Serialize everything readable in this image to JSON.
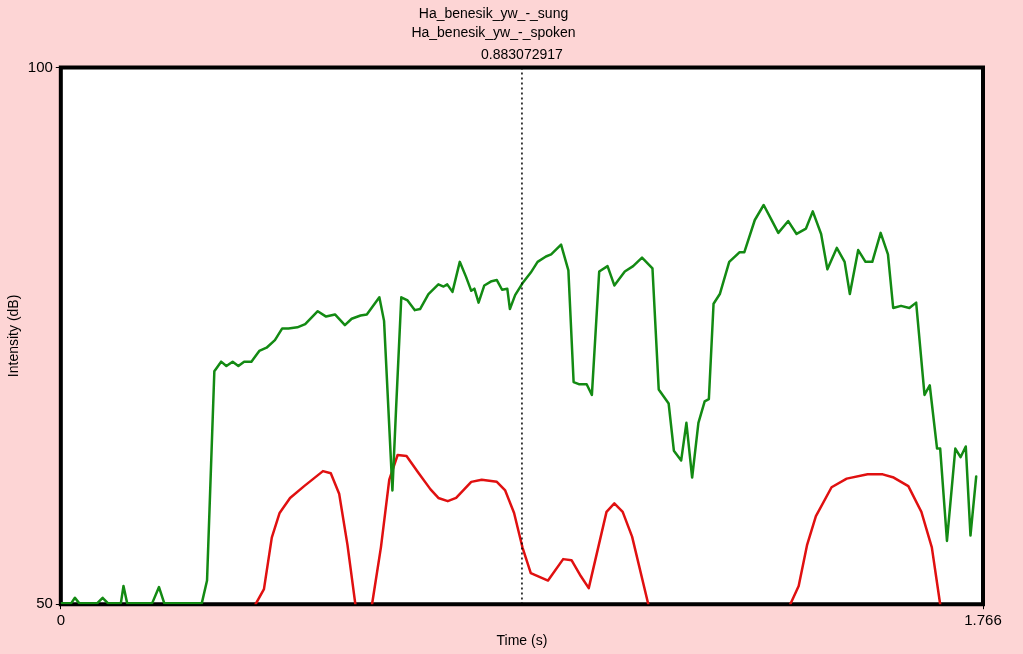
{
  "chart_data": {
    "type": "line",
    "title": "Ha_benesik_yw_-_sung",
    "subtitle": "Ha_benesik_yw_-_spoken",
    "xlabel": "Time (s)",
    "ylabel": "Intensity (dB)",
    "xlim": [
      0,
      1.766
    ],
    "xticks": [
      0,
      1.766
    ],
    "ylim": [
      50,
      100
    ],
    "yticks": [
      50,
      100
    ],
    "legend": false,
    "marker": "none",
    "line_style": "solid",
    "ref_lines": [
      {
        "axis": "x",
        "value": 0.883072917,
        "label": "0.883072917",
        "line_style": "dotted",
        "color": "#000000"
      }
    ],
    "series": [
      {
        "color": "#138a13",
        "x": [
          0,
          0.02,
          0.027,
          0.035,
          0.07,
          0.08,
          0.09,
          0.115,
          0.12,
          0.127,
          0.175,
          0.188,
          0.198,
          0.27,
          0.28,
          0.294,
          0.307,
          0.317,
          0.329,
          0.34,
          0.351,
          0.365,
          0.38,
          0.394,
          0.41,
          0.424,
          0.436,
          0.453,
          0.468,
          0.492,
          0.508,
          0.525,
          0.544,
          0.557,
          0.574,
          0.586,
          0.61,
          0.619,
          0.635,
          0.642,
          0.652,
          0.664,
          0.678,
          0.688,
          0.704,
          0.723,
          0.733,
          0.74,
          0.75,
          0.764,
          0.776,
          0.786,
          0.792,
          0.8,
          0.811,
          0.825,
          0.835,
          0.845,
          0.855,
          0.86,
          0.87,
          0.884,
          0.9,
          0.913,
          0.929,
          0.939,
          0.958,
          0.972,
          0.982,
          0.992,
          1.007,
          1.017,
          1.031,
          1.047,
          1.06,
          1.08,
          1.096,
          1.113,
          1.133,
          1.145,
          1.164,
          1.174,
          1.188,
          1.198,
          1.209,
          1.221,
          1.233,
          1.241,
          1.25,
          1.262,
          1.28,
          1.3,
          1.309,
          1.329,
          1.346,
          1.36,
          1.374,
          1.393,
          1.409,
          1.427,
          1.44,
          1.456,
          1.468,
          1.486,
          1.501,
          1.511,
          1.527,
          1.541,
          1.554,
          1.57,
          1.584,
          1.594,
          1.609,
          1.625,
          1.638,
          1.654,
          1.664,
          1.678,
          1.684,
          1.697,
          1.713,
          1.723,
          1.733,
          1.742,
          1.753
        ],
        "values": [
          50.1,
          50.1,
          50.6,
          50.1,
          50.1,
          50.6,
          50.1,
          50.1,
          51.7,
          50.1,
          50.1,
          51.6,
          50.1,
          50.1,
          52.2,
          71.7,
          72.6,
          72.2,
          72.6,
          72.2,
          72.6,
          72.6,
          73.6,
          73.9,
          74.6,
          75.7,
          75.7,
          75.8,
          76.1,
          77.3,
          76.8,
          77.0,
          76.0,
          76.6,
          76.9,
          77.0,
          78.6,
          76.4,
          60.6,
          68.2,
          78.6,
          78.3,
          77.4,
          77.5,
          78.9,
          79.8,
          79.6,
          79.8,
          79.1,
          81.9,
          80.5,
          79.2,
          79.4,
          78.1,
          79.7,
          80.1,
          80.2,
          79.3,
          79.4,
          77.5,
          78.8,
          79.9,
          80.9,
          81.9,
          82.4,
          82.6,
          83.5,
          81.1,
          70.7,
          70.5,
          70.5,
          69.5,
          81.0,
          81.5,
          79.7,
          81.0,
          81.5,
          82.3,
          81.3,
          70.0,
          68.7,
          64.3,
          63.4,
          66.9,
          61.8,
          66.9,
          68.9,
          69.1,
          78.0,
          78.9,
          81.9,
          82.8,
          82.8,
          85.8,
          87.2,
          85.9,
          84.6,
          85.7,
          84.5,
          85.0,
          86.6,
          84.5,
          81.2,
          83.2,
          81.9,
          78.9,
          83.0,
          81.9,
          81.9,
          84.6,
          82.6,
          77.6,
          77.8,
          77.6,
          78.1,
          69.5,
          70.4,
          64.5,
          64.5,
          55.9,
          64.5,
          63.7,
          64.7,
          56.4,
          61.9
        ]
      },
      {
        "color": "#e01010",
        "x": [
          0.373,
          0.389,
          0.404,
          0.419,
          0.439,
          0.466,
          0.502,
          0.517,
          0.533,
          0.549,
          0.564,
          0.58,
          0.596,
          0.613,
          0.629,
          0.645,
          0.662,
          0.684,
          0.708,
          0.723,
          0.741,
          0.757,
          0.786,
          0.806,
          0.835,
          0.851,
          0.868,
          0.884,
          0.9,
          0.933,
          0.962,
          0.978,
          0.996,
          1.011,
          1.045,
          1.06,
          1.076,
          1.094,
          1.125,
          1.26,
          1.397,
          1.413,
          1.429,
          1.446,
          1.476,
          1.505,
          1.545,
          1.574,
          1.595,
          1.623,
          1.648,
          1.668,
          1.684
        ],
        "values": [
          50,
          51.4,
          56.2,
          58.5,
          59.9,
          61.0,
          62.4,
          62.2,
          60.3,
          55.5,
          50,
          null,
          50,
          55.3,
          61.6,
          63.9,
          63.8,
          62.3,
          60.7,
          59.9,
          59.6,
          59.9,
          61.4,
          61.6,
          61.4,
          60.6,
          58.5,
          55.3,
          52.9,
          52.2,
          54.2,
          54.1,
          52.6,
          51.5,
          58.6,
          59.4,
          58.6,
          56.3,
          50,
          null,
          50,
          51.7,
          55.5,
          58.2,
          60.9,
          61.7,
          62.1,
          62.1,
          61.8,
          61.0,
          58.6,
          55.3,
          50
        ]
      }
    ]
  }
}
